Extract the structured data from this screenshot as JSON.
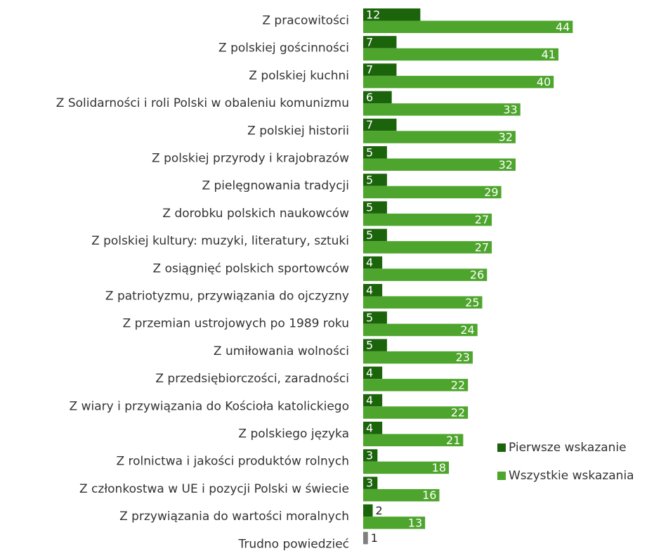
{
  "chart_data": {
    "type": "hbar",
    "categories": [
      "Z pracowitości",
      "Z polskiej gościnności",
      "Z polskiej kuchni",
      "Z Solidarności i roli Polski w obaleniu komunizmu",
      "Z polskiej historii",
      "Z polskiej przyrody i krajobrazów",
      "Z pielęgnowania tradycji",
      "Z dorobku polskich naukowców",
      "Z polskiej kultury: muzyki, literatury, sztuki",
      "Z osiągnięć polskich sportowców",
      "Z patriotyzmu, przywiązania do ojczyzny",
      "Z przemian ustrojowych po 1989 roku",
      "Z umiłowania wolności",
      "Z przedsiębiorczości, zaradności",
      "Z wiary i przywiązania do Kościoła katolickiego",
      "Z polskiego języka",
      "Z rolnictwa i jakości produktów rolnych",
      "Z członkostwa w UE i pozycji Polski w świecie",
      "Z przywiązania do wartości moralnych",
      "Trudno powiedzieć"
    ],
    "series": [
      {
        "name": "Pierwsze wskazanie",
        "color": "#1c640c",
        "values": [
          12,
          7,
          7,
          6,
          7,
          5,
          5,
          5,
          5,
          4,
          4,
          5,
          5,
          4,
          4,
          4,
          3,
          3,
          2,
          1
        ],
        "point_colors": [
          "#1c640c",
          "#1c640c",
          "#1c640c",
          "#1c640c",
          "#1c640c",
          "#1c640c",
          "#1c640c",
          "#1c640c",
          "#1c640c",
          "#1c640c",
          "#1c640c",
          "#1c640c",
          "#1c640c",
          "#1c640c",
          "#1c640c",
          "#1c640c",
          "#1c640c",
          "#1c640c",
          "#1c640c",
          "#7f7f7f"
        ]
      },
      {
        "name": "Wszystkie wskazania",
        "color": "#4ea52d",
        "values": [
          44,
          41,
          40,
          33,
          32,
          32,
          29,
          27,
          27,
          26,
          25,
          24,
          23,
          22,
          22,
          21,
          18,
          16,
          13,
          null
        ]
      }
    ],
    "xlim": [
      0,
      50
    ],
    "legend": "right"
  }
}
